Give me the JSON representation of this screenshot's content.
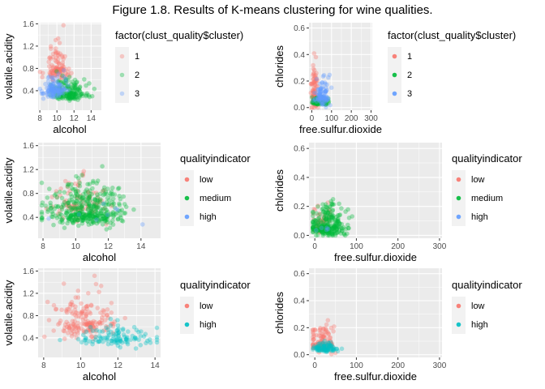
{
  "figure_title": "Figure 1.8. Results of K-means clustering for wine qualities.",
  "colors": {
    "panel_bg": "#ebebeb",
    "grid": "#ffffff",
    "red": "#F8766D",
    "green": "#00BA38",
    "blue": "#619CFF",
    "teal": "#00BFC4"
  },
  "chart_data": [
    {
      "id": "p1",
      "type": "scatter",
      "xlabel": "alcohol",
      "ylabel": "volatile.acidity",
      "xlim": [
        7.8,
        15.2
      ],
      "ylim": [
        0.05,
        1.62
      ],
      "xticks": [
        8,
        10,
        12,
        14
      ],
      "yticks": [
        0.4,
        0.8,
        1.2,
        1.6
      ],
      "xtick_labels": [
        "8",
        "10",
        "12",
        "14"
      ],
      "ytick_labels": [
        "0.4",
        "0.8",
        "1.2",
        "1.6"
      ],
      "legend": {
        "title": "factor(clust_quality$cluster)",
        "placement": "right",
        "entries": [
          {
            "label": "1",
            "color": "#F8766D"
          },
          {
            "label": "2",
            "color": "#00BA38"
          },
          {
            "label": "3",
            "color": "#619CFF"
          }
        ]
      },
      "series": [
        {
          "name": "1",
          "color": "#F8766D",
          "x_center": 10.0,
          "x_sd": 0.6,
          "y_center": 0.8,
          "y_sd": 0.18,
          "n": 110
        },
        {
          "name": "2",
          "color": "#00BA38",
          "x_center": 11.4,
          "x_sd": 1.0,
          "y_center": 0.36,
          "y_sd": 0.1,
          "n": 160
        },
        {
          "name": "3",
          "color": "#619CFF",
          "x_center": 9.6,
          "x_sd": 0.7,
          "y_center": 0.42,
          "y_sd": 0.12,
          "n": 110
        }
      ]
    },
    {
      "id": "p2",
      "type": "scatter",
      "xlabel": "free.sulfur.dioxide",
      "ylabel": "chlorides",
      "xlim": [
        -14,
        306
      ],
      "ylim": [
        -0.02,
        0.64
      ],
      "xticks": [
        0,
        100,
        200,
        300
      ],
      "yticks": [
        0.0,
        0.2,
        0.4,
        0.6
      ],
      "xtick_labels": [
        "0",
        "100",
        "200",
        "300"
      ],
      "ytick_labels": [
        "0.0",
        "0.2",
        "0.4",
        "0.6"
      ],
      "legend": {
        "title": "factor(clust_quality$cluster)",
        "placement": "right",
        "entries": [
          {
            "label": "1",
            "color": "#F8766D"
          },
          {
            "label": "2",
            "color": "#00BA38"
          },
          {
            "label": "3",
            "color": "#619CFF"
          }
        ]
      },
      "series": [
        {
          "name": "1",
          "color": "#F8766D",
          "x_center": 14,
          "x_sd": 8,
          "y_center": 0.1,
          "y_sd": 0.09,
          "n": 90
        },
        {
          "name": "2",
          "color": "#00BA38",
          "x_center": 35,
          "x_sd": 22,
          "y_center": 0.04,
          "y_sd": 0.015,
          "n": 120
        },
        {
          "name": "3",
          "color": "#619CFF",
          "x_center": 55,
          "x_sd": 18,
          "y_center": 0.08,
          "y_sd": 0.05,
          "n": 90
        }
      ]
    },
    {
      "id": "p3",
      "type": "scatter",
      "xlabel": "alcohol",
      "ylabel": "volatile.acidity",
      "xlim": [
        7.7,
        15.2
      ],
      "ylim": [
        0.05,
        1.65
      ],
      "xticks": [
        8,
        10,
        12,
        14
      ],
      "yticks": [
        0.4,
        0.8,
        1.2,
        1.6
      ],
      "xtick_labels": [
        "8",
        "10",
        "12",
        "14"
      ],
      "ytick_labels": [
        "0.4",
        "0.8",
        "1.2",
        "1.6"
      ],
      "legend": {
        "title": "qualityindicator",
        "placement": "right",
        "entries": [
          {
            "label": "low",
            "color": "#F8766D"
          },
          {
            "label": "medium",
            "color": "#00BA38"
          },
          {
            "label": "high",
            "color": "#619CFF"
          }
        ]
      },
      "series": [
        {
          "name": "low",
          "color": "#F8766D",
          "x_center": 10.2,
          "x_sd": 0.9,
          "y_center": 0.62,
          "y_sd": 0.22,
          "n": 90
        },
        {
          "name": "medium",
          "color": "#00BA38",
          "x_center": 10.6,
          "x_sd": 1.2,
          "y_center": 0.48,
          "y_sd": 0.17,
          "n": 380
        },
        {
          "name": "high",
          "color": "#619CFF",
          "x_center": 11.8,
          "x_sd": 1.0,
          "y_center": 0.38,
          "y_sd": 0.1,
          "n": 8
        }
      ]
    },
    {
      "id": "p4",
      "type": "scatter",
      "xlabel": "free.sulfur.dioxide",
      "ylabel": "chlorides",
      "xlim": [
        -14,
        306
      ],
      "ylim": [
        -0.02,
        0.64
      ],
      "xticks": [
        0,
        100,
        200,
        300
      ],
      "yticks": [
        0.0,
        0.2,
        0.4,
        0.6
      ],
      "xtick_labels": [
        "0",
        "100",
        "200",
        "300"
      ],
      "ytick_labels": [
        "0.0",
        "0.2",
        "0.4",
        "0.6"
      ],
      "legend": {
        "title": "qualityindicator",
        "placement": "right",
        "entries": [
          {
            "label": "low",
            "color": "#F8766D"
          },
          {
            "label": "medium",
            "color": "#00BA38"
          },
          {
            "label": "high",
            "color": "#619CFF"
          }
        ]
      },
      "series": [
        {
          "name": "low",
          "color": "#F8766D",
          "x_center": 20,
          "x_sd": 14,
          "y_center": 0.07,
          "y_sd": 0.04,
          "n": 60
        },
        {
          "name": "medium",
          "color": "#00BA38",
          "x_center": 30,
          "x_sd": 22,
          "y_center": 0.06,
          "y_sd": 0.05,
          "n": 260
        },
        {
          "name": "high",
          "color": "#619CFF",
          "x_center": 25,
          "x_sd": 10,
          "y_center": 0.04,
          "y_sd": 0.01,
          "n": 5
        }
      ]
    },
    {
      "id": "p5",
      "type": "scatter",
      "xlabel": "alcohol",
      "ylabel": "volatile.acidity",
      "xlim": [
        7.7,
        14.3
      ],
      "ylim": [
        0.05,
        1.65
      ],
      "xticks": [
        8,
        10,
        12,
        14
      ],
      "yticks": [
        0.4,
        0.8,
        1.2,
        1.6
      ],
      "xtick_labels": [
        "8",
        "10",
        "12",
        "14"
      ],
      "ytick_labels": [
        "0.4",
        "0.8",
        "1.2",
        "1.6"
      ],
      "legend": {
        "title": "qualityindicator",
        "placement": "right",
        "entries": [
          {
            "label": "low",
            "color": "#F8766D"
          },
          {
            "label": "high",
            "color": "#00BFC4"
          }
        ]
      },
      "series": [
        {
          "name": "low",
          "color": "#F8766D",
          "x_center": 10.2,
          "x_sd": 0.9,
          "y_center": 0.68,
          "y_sd": 0.22,
          "n": 170
        },
        {
          "name": "high",
          "color": "#00BFC4",
          "x_center": 12.0,
          "x_sd": 1.0,
          "y_center": 0.38,
          "y_sd": 0.09,
          "n": 110
        }
      ]
    },
    {
      "id": "p6",
      "type": "scatter",
      "xlabel": "free.sulfur.dioxide",
      "ylabel": "chlorides",
      "xlim": [
        -14,
        306
      ],
      "ylim": [
        -0.02,
        0.64
      ],
      "xticks": [
        0,
        100,
        200,
        300
      ],
      "yticks": [
        0.0,
        0.2,
        0.4,
        0.6
      ],
      "xtick_labels": [
        "0",
        "100",
        "200",
        "300"
      ],
      "ytick_labels": [
        "0.0",
        "0.2",
        "0.4",
        "0.6"
      ],
      "legend": {
        "title": "qualityindicator",
        "placement": "right",
        "entries": [
          {
            "label": "low",
            "color": "#F8766D"
          },
          {
            "label": "high",
            "color": "#00BFC4"
          }
        ]
      },
      "series": [
        {
          "name": "low",
          "color": "#F8766D",
          "x_center": 18,
          "x_sd": 14,
          "y_center": 0.08,
          "y_sd": 0.05,
          "n": 120
        },
        {
          "name": "high",
          "color": "#00BFC4",
          "x_center": 28,
          "x_sd": 16,
          "y_center": 0.045,
          "y_sd": 0.015,
          "n": 90
        }
      ]
    }
  ]
}
